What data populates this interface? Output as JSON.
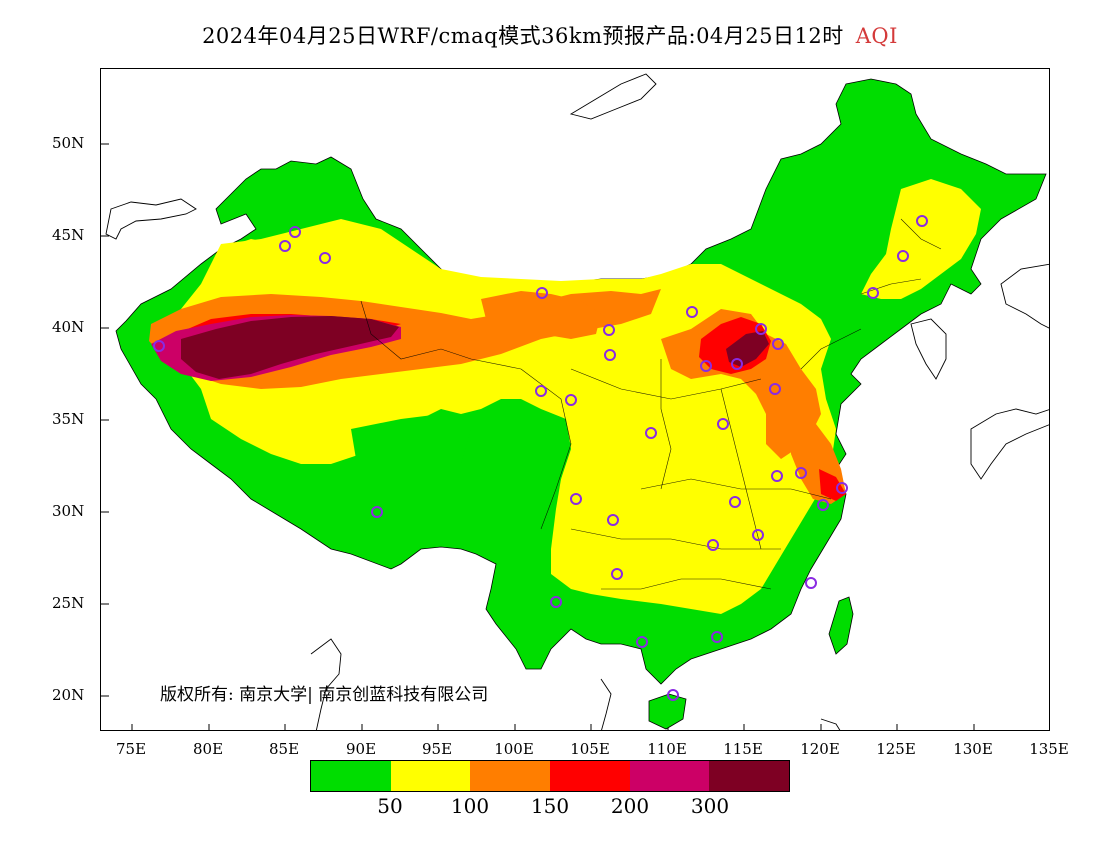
{
  "title": {
    "main": "2024年04月25日WRF/cmaq模式36km预报产品:04月25日12时",
    "product": "AQI"
  },
  "axes": {
    "y_ticks": [
      "50N",
      "45N",
      "40N",
      "35N",
      "30N",
      "25N",
      "20N"
    ],
    "x_ticks": [
      "75E",
      "80E",
      "85E",
      "90E",
      "95E",
      "100E",
      "105E",
      "110E",
      "115E",
      "120E",
      "125E",
      "130E",
      "135E"
    ]
  },
  "copyright": "版权所有: 南京大学| 南京创蓝科技有限公司",
  "legend": {
    "colors": [
      "#00dd00",
      "#ffff00",
      "#ff7e00",
      "#ff0000",
      "#cc0066",
      "#7e0023"
    ],
    "labels": [
      "50",
      "100",
      "150",
      "200",
      "300"
    ]
  },
  "map": {
    "extent": {
      "lon": [
        73,
        135
      ],
      "lat": [
        18,
        54
      ]
    },
    "ocean_color": "#ffffff",
    "outline_color": "#000000",
    "marker_color": "#8a2be2"
  }
}
